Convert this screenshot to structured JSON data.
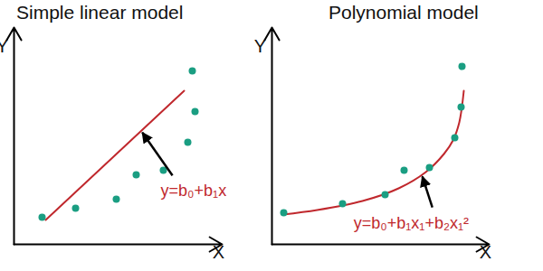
{
  "chart_data": [
    {
      "type": "scatter",
      "title": "Simple linear model",
      "x_label": "X",
      "y_label": "Y",
      "xlim": [
        0,
        230
      ],
      "ylim": [
        0,
        240
      ],
      "tick_labels": false,
      "grid": false,
      "points": {
        "x": [
          31,
          68,
          113,
          135,
          165,
          192,
          200,
          197
        ],
        "y": [
          30,
          40,
          50,
          77,
          82,
          113,
          147,
          192
        ],
        "color": "#1a9e82",
        "marker": "circle"
      },
      "fit": {
        "x": [
          35,
          188
        ],
        "y": [
          27,
          170
        ],
        "color": "#c0282d",
        "line_style": "solid"
      },
      "annotation": "y=b₀+b₁x"
    },
    {
      "type": "scatter",
      "title": "Polynomial model",
      "x_label": "X",
      "y_label": "Y",
      "xlim": [
        0,
        240
      ],
      "ylim": [
        0,
        240
      ],
      "tick_labels": false,
      "grid": false,
      "points": {
        "x": [
          13,
          78,
          125,
          146,
          174,
          202,
          209,
          210
        ],
        "y": [
          35,
          45,
          55,
          82,
          85,
          118,
          152,
          197
        ],
        "color": "#1a9e82",
        "marker": "circle"
      },
      "fit": {
        "x": [
          12,
          50,
          100,
          140,
          170,
          190,
          200,
          207,
          212
        ],
        "y": [
          33,
          38,
          48,
          62,
          80,
          100,
          115,
          135,
          170
        ],
        "color": "#c0282d",
        "line_style": "solid"
      },
      "annotation": "y=b₀+b₁x₁+b₂x₁²"
    }
  ]
}
